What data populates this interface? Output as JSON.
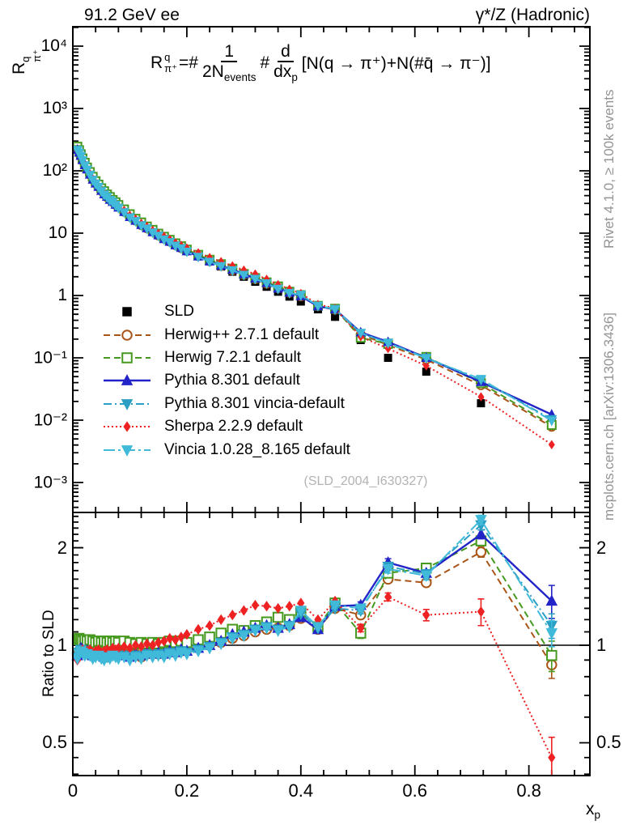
{
  "header": {
    "left_title": "91.2 GeV ee",
    "right_title": "γ*/Z (Hadronic)"
  },
  "side_notes": {
    "top": "Rivet 4.1.0, ≥ 100k events",
    "bottom": "mcplots.cern.ch [arXiv:1306.3436]"
  },
  "watermark": "(SLD_2004_I630327)",
  "formula": {
    "lhs_base": "R",
    "lhs_sup": "q",
    "lhs_sub": "π⁺",
    "eq": "=#",
    "frac1_num": "1",
    "frac1_den_base": "2N",
    "frac1_den_sub": "events",
    "hash": "#",
    "frac2_num": "d",
    "frac2_den_base": "dx",
    "frac2_den_sub": "p",
    "tail": "[N(q → π⁺)+N(#q̄ → π⁻)]"
  },
  "axes": {
    "main_y_title": {
      "base": "R",
      "sup": "q",
      "sub": "π⁺"
    },
    "ratio_y_title": "Ratio to SLD",
    "x_title": {
      "base": "x",
      "sub": "p"
    },
    "main_y_ticks": [
      {
        "label": "10⁴",
        "value": 10000
      },
      {
        "label": "10³",
        "value": 1000
      },
      {
        "label": "10²",
        "value": 100
      },
      {
        "label": "10",
        "value": 10
      },
      {
        "label": "1",
        "value": 1
      },
      {
        "label": "10⁻¹",
        "value": 0.1
      },
      {
        "label": "10⁻²",
        "value": 0.01
      },
      {
        "label": "10⁻³",
        "value": 0.001
      }
    ],
    "ratio_y_ticks": [
      {
        "label": "2",
        "value": 2
      },
      {
        "label": "1",
        "value": 1
      },
      {
        "label": "0.5",
        "value": 0.5
      }
    ],
    "x_ticks": [
      {
        "label": "0",
        "value": 0
      },
      {
        "label": "0.2",
        "value": 0.2
      },
      {
        "label": "0.4",
        "value": 0.4
      },
      {
        "label": "0.6",
        "value": 0.6
      },
      {
        "label": "0.8",
        "value": 0.8
      }
    ]
  },
  "chart_data": {
    "type": "line",
    "x_label": "x_p",
    "main_y_scale": "log",
    "ratio_y_scale": "log",
    "xlim": [
      0,
      0.907
    ],
    "main_ylim": [
      0.000331,
      20500
    ],
    "ratio_ylim": [
      0.396,
      2.57
    ],
    "ratio_reference_line": 1,
    "x": [
      0.008,
      0.011,
      0.014,
      0.017,
      0.021,
      0.025,
      0.03,
      0.035,
      0.04,
      0.045,
      0.05,
      0.055,
      0.06,
      0.065,
      0.07,
      0.075,
      0.08,
      0.09,
      0.1,
      0.11,
      0.12,
      0.13,
      0.14,
      0.15,
      0.16,
      0.17,
      0.18,
      0.19,
      0.2,
      0.22,
      0.24,
      0.26,
      0.28,
      0.3,
      0.32,
      0.34,
      0.36,
      0.38,
      0.4,
      0.43,
      0.46,
      0.505,
      0.553,
      0.62,
      0.716,
      0.84
    ],
    "reference": {
      "id": "sld",
      "name": "SLD",
      "color": "#000000",
      "line": "none",
      "marker": "square-filled",
      "values": [
        235,
        205,
        178,
        154,
        130,
        110,
        92,
        78,
        67,
        58.5,
        51.5,
        45.8,
        41,
        37,
        33.5,
        30.5,
        27.8,
        23.4,
        19.8,
        16.9,
        14.6,
        12.7,
        11.1,
        9.75,
        8.6,
        7.6,
        6.75,
        6.0,
        5.35,
        4.33,
        3.54,
        2.92,
        2.41,
        2.0,
        1.66,
        1.38,
        1.15,
        0.96,
        0.8,
        0.6,
        0.455,
        0.193,
        0.1,
        0.06,
        0.0187,
        0.009
      ]
    },
    "series": [
      {
        "id": "herwigpp",
        "name": "Herwig++ 2.7.1 default",
        "color": "#aa5518",
        "line": "dash",
        "marker": "circle-open",
        "ratio": [
          0.93,
          0.96,
          0.97,
          0.96,
          0.95,
          0.96,
          0.95,
          0.93,
          0.94,
          0.95,
          0.94,
          0.93,
          0.92,
          0.94,
          0.95,
          0.94,
          0.95,
          0.94,
          0.93,
          0.94,
          0.92,
          0.94,
          0.95,
          0.94,
          0.95,
          0.96,
          0.95,
          0.96,
          0.97,
          0.99,
          1.0,
          1.02,
          1.05,
          1.07,
          1.1,
          1.12,
          1.13,
          1.15,
          1.21,
          1.12,
          1.3,
          1.24,
          1.6,
          1.56,
          1.94,
          0.87
        ],
        "tail_err": [
          0.03,
          0.04,
          0.04,
          0.07,
          0.08
        ]
      },
      {
        "id": "herwig7",
        "name": "Herwig 7.2.1 default",
        "color": "#46991f",
        "line": "dash",
        "marker": "square-open",
        "ratio": [
          1.04,
          1.05,
          1.04,
          1.03,
          1.04,
          1.03,
          1.04,
          1.03,
          1.02,
          1.03,
          1.02,
          1.03,
          1.02,
          1.03,
          1.02,
          1.03,
          1.02,
          1.03,
          1.02,
          1.01,
          1.02,
          1.01,
          1.02,
          1.01,
          1.02,
          1.03,
          1.02,
          1.03,
          1.02,
          1.04,
          1.06,
          1.09,
          1.12,
          1.11,
          1.15,
          1.18,
          1.22,
          1.2,
          1.27,
          1.14,
          1.35,
          1.09,
          1.67,
          1.73,
          2.1,
          0.93
        ],
        "tail_err": [
          0.04,
          0.04,
          0.04,
          0.07,
          0.1
        ]
      },
      {
        "id": "pythia",
        "name": "Pythia 8.301 default",
        "color": "#2224c8",
        "line": "solid",
        "marker": "triangle-up",
        "ratio": [
          0.93,
          0.96,
          0.98,
          0.97,
          0.95,
          0.96,
          0.95,
          0.93,
          0.94,
          0.95,
          0.93,
          0.92,
          0.94,
          0.93,
          0.95,
          0.94,
          0.93,
          0.94,
          0.92,
          0.94,
          0.93,
          0.95,
          0.94,
          0.95,
          0.94,
          0.96,
          0.95,
          0.97,
          0.96,
          0.98,
          1.0,
          1.03,
          1.08,
          1.1,
          1.13,
          1.15,
          1.13,
          1.16,
          1.22,
          1.12,
          1.32,
          1.33,
          1.8,
          1.67,
          2.2,
          1.37
        ],
        "tail_err": [
          0.03,
          0.05,
          0.04,
          0.07,
          0.16
        ]
      },
      {
        "id": "pythia-vincia",
        "name": "Pythia 8.301 vincia-default",
        "color": "#2b9fc3",
        "line": "dashdot",
        "marker": "triangle-down",
        "ratio": [
          0.92,
          0.95,
          0.97,
          0.96,
          0.94,
          0.95,
          0.94,
          0.92,
          0.93,
          0.94,
          0.92,
          0.91,
          0.93,
          0.92,
          0.94,
          0.93,
          0.92,
          0.93,
          0.91,
          0.93,
          0.92,
          0.94,
          0.93,
          0.94,
          0.93,
          0.95,
          0.94,
          0.96,
          0.95,
          0.97,
          0.99,
          1.02,
          1.06,
          1.08,
          1.12,
          1.14,
          1.12,
          1.15,
          1.25,
          1.13,
          1.3,
          1.28,
          1.75,
          1.66,
          2.35,
          1.15
        ],
        "tail_err": [
          0.03,
          0.05,
          0.05,
          0.08,
          0.1
        ]
      },
      {
        "id": "sherpa",
        "name": "Sherpa 2.2.9 default",
        "color": "#ee2222",
        "line": "dot",
        "marker": "diamond",
        "ratio": [
          0.9,
          0.94,
          0.96,
          0.97,
          0.95,
          0.96,
          0.97,
          0.95,
          0.96,
          0.97,
          0.95,
          0.96,
          0.97,
          0.96,
          0.98,
          0.97,
          0.98,
          0.99,
          0.98,
          1.0,
          0.99,
          1.01,
          1.0,
          1.02,
          1.03,
          1.05,
          1.04,
          1.06,
          1.08,
          1.12,
          1.15,
          1.2,
          1.24,
          1.28,
          1.33,
          1.32,
          1.3,
          1.32,
          1.35,
          1.2,
          1.37,
          1.13,
          1.41,
          1.24,
          1.27,
          0.45
        ],
        "tail_err": [
          0.03,
          0.04,
          0.05,
          0.12,
          0.07
        ]
      },
      {
        "id": "vincia",
        "name": "Vincia 1.0.28_8.165 default",
        "color": "#41bada",
        "line": "dashdotlong",
        "marker": "triangle-down",
        "ratio": [
          0.91,
          0.94,
          0.96,
          0.95,
          0.93,
          0.94,
          0.93,
          0.91,
          0.92,
          0.93,
          0.91,
          0.9,
          0.92,
          0.91,
          0.93,
          0.92,
          0.91,
          0.92,
          0.9,
          0.92,
          0.91,
          0.93,
          0.92,
          0.93,
          0.92,
          0.94,
          0.93,
          0.95,
          0.94,
          0.96,
          0.98,
          1.01,
          1.05,
          1.07,
          1.11,
          1.13,
          1.11,
          1.14,
          1.28,
          1.14,
          1.33,
          1.3,
          1.72,
          1.64,
          2.44,
          1.09
        ],
        "tail_err": [
          0.03,
          0.05,
          0.05,
          0.08,
          0.1
        ]
      }
    ]
  }
}
